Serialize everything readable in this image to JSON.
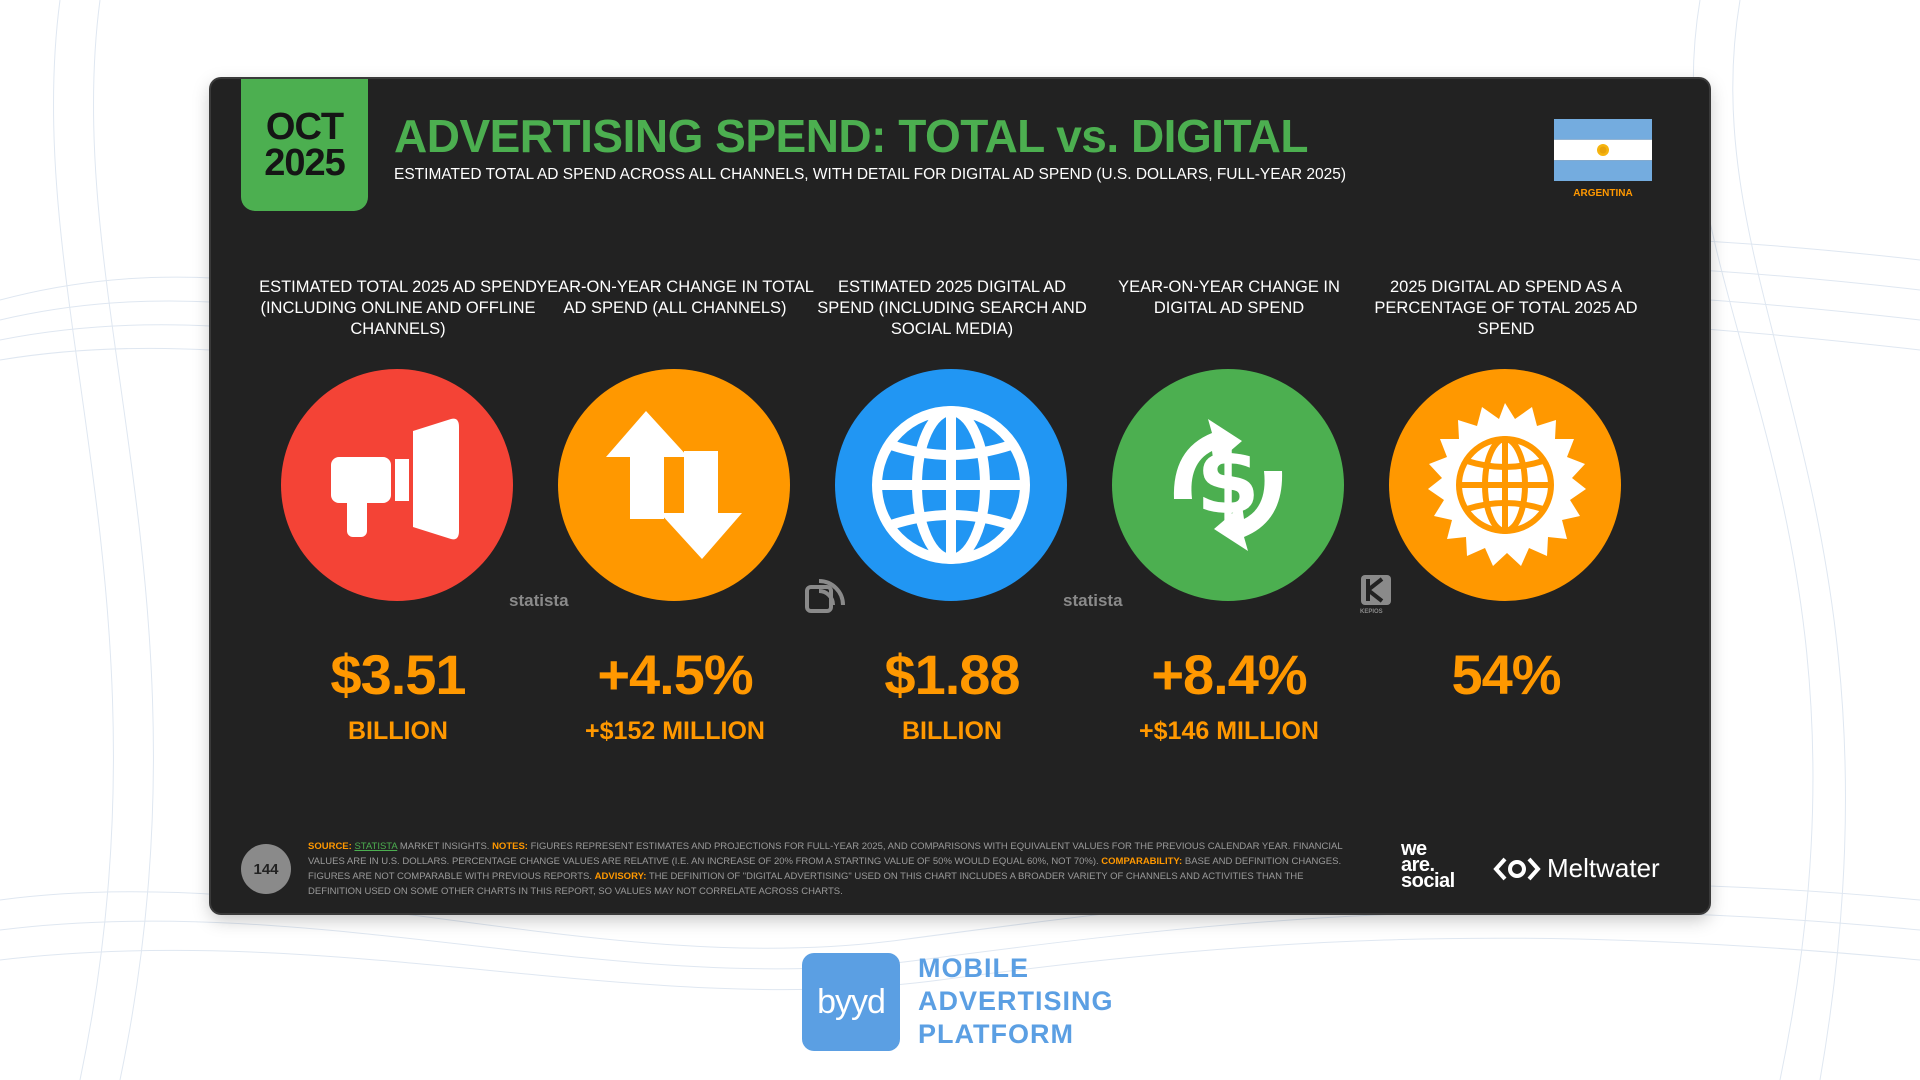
{
  "slide": {
    "date_month": "OCT",
    "date_year": "2025",
    "title": "ADVERTISING SPEND: TOTAL vs. DIGITAL",
    "subtitle": "ESTIMATED TOTAL AD SPEND ACROSS ALL CHANNELS, WITH DETAIL FOR DIGITAL AD SPEND (U.S. DOLLARS, FULL-YEAR 2025)",
    "country": "ARGENTINA",
    "page_number": "144"
  },
  "metrics": [
    {
      "label": "ESTIMATED TOTAL 2025 AD SPEND (INCLUDING ONLINE AND OFFLINE CHANNELS)",
      "value": "$3.51",
      "sub": "BILLION",
      "icon": "megaphone-icon",
      "color": "#f44336"
    },
    {
      "label": "YEAR-ON-YEAR CHANGE IN TOTAL AD SPEND (ALL CHANNELS)",
      "value": "+4.5%",
      "sub": "+$152 MILLION",
      "icon": "up-down-arrows-icon",
      "color": "#ff9800"
    },
    {
      "label": "ESTIMATED 2025 DIGITAL AD SPEND (INCLUDING SEARCH AND SOCIAL MEDIA)",
      "value": "$1.88",
      "sub": "BILLION",
      "icon": "globe-icon",
      "color": "#2196f3"
    },
    {
      "label": "YEAR-ON-YEAR CHANGE IN DIGITAL AD SPEND",
      "value": "+8.4%",
      "sub": "+$146 MILLION",
      "icon": "dollar-cycle-icon",
      "color": "#4caf50"
    },
    {
      "label": "2025 DIGITAL AD SPEND AS A PERCENTAGE OF TOTAL 2025 AD SPEND",
      "value": "54%",
      "sub": "",
      "icon": "globe-badge-icon",
      "color": "#ff9800"
    }
  ],
  "watermarks": {
    "statista": "statista",
    "kepios": "KEPIOS"
  },
  "notes": {
    "source_key": "SOURCE:",
    "source_link": "STATISTA",
    "source_text": " MARKET INSIGHTS. ",
    "notes_key": "NOTES:",
    "notes_text": " FIGURES REPRESENT ESTIMATES AND PROJECTIONS FOR FULL-YEAR 2025, AND COMPARISONS WITH EQUIVALENT VALUES FOR THE PREVIOUS CALENDAR YEAR. FINANCIAL VALUES ARE IN U.S. DOLLARS. PERCENTAGE CHANGE VALUES ARE RELATIVE (I.E. AN INCREASE OF 20% FROM A STARTING VALUE OF 50% WOULD EQUAL 60%, NOT 70%). ",
    "comparability_key": "COMPARABILITY:",
    "comparability_text": " BASE AND DEFINITION CHANGES. FIGURES ARE NOT COMPARABLE WITH PREVIOUS REPORTS. ",
    "advisory_key": "ADVISORY:",
    "advisory_text": " THE DEFINITION OF \"DIGITAL ADVERTISING\" USED ON THIS CHART INCLUDES A BROADER VARIETY OF CHANNELS AND ACTIVITIES THAN THE DEFINITION USED ON SOME OTHER CHARTS IN THIS REPORT, SO VALUES MAY NOT CORRELATE ACROSS CHARTS."
  },
  "brands": {
    "was_line1": "we",
    "was_line2": "are.",
    "was_line3": "social",
    "meltwater": "Meltwater"
  },
  "footer": {
    "byyd_logo": "byyd",
    "line1": "MOBILE",
    "line2": "ADVERTISING",
    "line3": "PLATFORM"
  }
}
